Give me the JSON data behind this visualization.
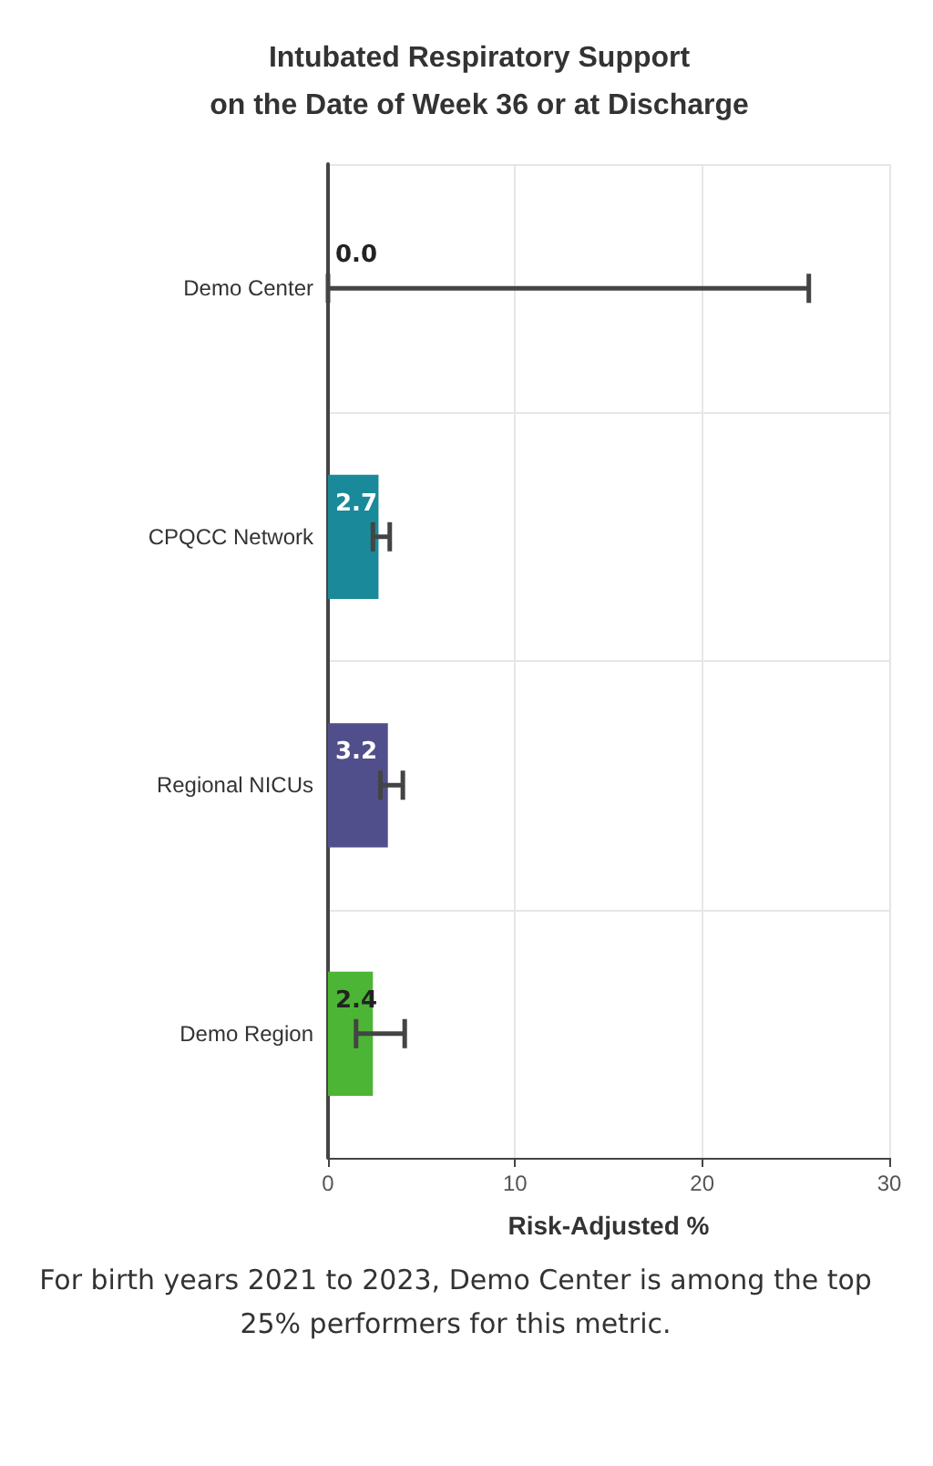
{
  "chart_data": {
    "type": "bar",
    "orientation": "horizontal",
    "title": "Intubated Respiratory Support\non the Date of Week 36 or at Discharge",
    "categories": [
      "Demo Center",
      "CPQCC Network",
      "Regional NICUs",
      "Demo Region"
    ],
    "values": [
      0.0,
      2.7,
      3.2,
      2.4
    ],
    "colors": [
      "#1a8a9a",
      "#1a8a9a",
      "#514e8c",
      "#4db535"
    ],
    "errors": [
      [
        0.0,
        25.7
      ],
      [
        2.4,
        3.3
      ],
      [
        2.8,
        4.0
      ],
      [
        1.5,
        4.1
      ]
    ],
    "value_labels": [
      "0.0",
      "2.7",
      "3.2",
      "2.4"
    ],
    "xlabel": "Risk-Adjusted %",
    "xlim": [
      0,
      30
    ],
    "xticks": [
      0,
      10,
      20,
      30
    ],
    "grid": true,
    "annotations": [
      "For birth years 2021 to 2023, Demo Center is among the top 25% performers for this metric."
    ]
  }
}
